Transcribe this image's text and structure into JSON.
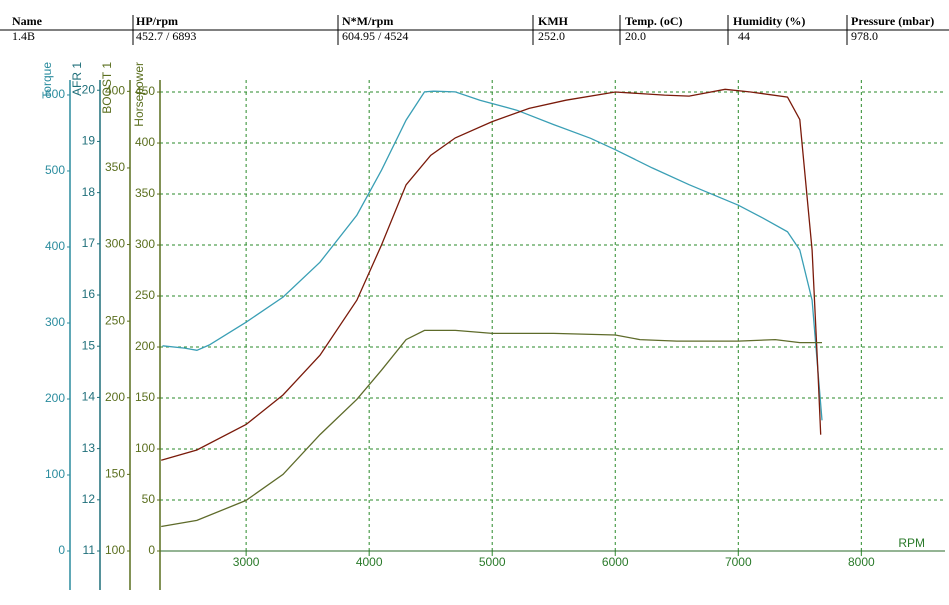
{
  "header": {
    "columns": [
      "Name",
      "HP/rpm",
      "N*M/rpm",
      "KMH",
      "Temp. (oC)",
      "Humidity (%)",
      "Pressure (mbar)"
    ],
    "rows": [
      [
        "1.4B",
        "452.7 / 6893",
        "604.95 / 4524",
        "252.0",
        "20.0",
        "44",
        "978.0"
      ]
    ]
  },
  "chart_data": {
    "type": "line",
    "x_label": "RPM",
    "xlim": [
      2300,
      8680
    ],
    "xticks": [
      3000,
      4000,
      5000,
      6000,
      7000,
      8000
    ],
    "grid": true,
    "grid_axis": 3,
    "axes": [
      {
        "title": "Torque",
        "lim": [
          0,
          619.7
        ],
        "ticks": [
          0,
          100,
          200,
          300,
          400,
          500,
          600
        ],
        "color": "#2b8c9e"
      },
      {
        "title": "AFR 1",
        "lim": [
          11,
          20.2
        ],
        "ticks": [
          11,
          12,
          13,
          14,
          15,
          16,
          17,
          18,
          19,
          20
        ],
        "color": "#1f6f7a"
      },
      {
        "title": "BOOST 1",
        "lim": [
          100,
          407.4
        ],
        "ticks": [
          100,
          150,
          200,
          250,
          300,
          350,
          400
        ],
        "color": "#5a6e1e"
      },
      {
        "title": "Horsepower",
        "lim": [
          0,
          461.8
        ],
        "ticks": [
          0,
          50,
          100,
          150,
          200,
          250,
          300,
          350,
          400,
          450
        ],
        "color": "#5a6e1e"
      }
    ],
    "series": [
      {
        "axis": 0,
        "color": "#3a9fb5",
        "x": [
          2320,
          2500,
          2600,
          2700,
          3000,
          3300,
          3600,
          3900,
          4100,
          4300,
          4450,
          4524,
          4700,
          4900,
          5200,
          5500,
          5800,
          6000,
          6300,
          6600,
          7000,
          7200,
          7400,
          7500,
          7600,
          7680
        ],
        "values": [
          270,
          267,
          264,
          271,
          301,
          334,
          380,
          442,
          501,
          567,
          604,
          604.95,
          604,
          593,
          580,
          561,
          543,
          528,
          504,
          482,
          455,
          438,
          420,
          396,
          330,
          172
        ]
      },
      {
        "axis": 3,
        "color": "#7a1a0a",
        "x": [
          2310,
          2600,
          3000,
          3300,
          3600,
          3900,
          4100,
          4300,
          4500,
          4700,
          5000,
          5300,
          5600,
          6000,
          6400,
          6600,
          6893,
          7100,
          7400,
          7500,
          7600,
          7650,
          7670
        ],
        "values": [
          89,
          99,
          124,
          153,
          192,
          246,
          300,
          359,
          388,
          405,
          421,
          434,
          442,
          450,
          447,
          446,
          452.7,
          450,
          445,
          423,
          295,
          168,
          114
        ]
      },
      {
        "axis": 2,
        "color": "#5e6b2a",
        "x": [
          2310,
          2600,
          3000,
          3300,
          3600,
          3900,
          4100,
          4300,
          4450,
          4700,
          5000,
          5500,
          6000,
          6200,
          6500,
          7000,
          7300,
          7500,
          7680
        ],
        "values": [
          116,
          120,
          133,
          150,
          176,
          199,
          218,
          238,
          244,
          244,
          242,
          242,
          241,
          238,
          237,
          237,
          238,
          236,
          236
        ]
      }
    ]
  }
}
